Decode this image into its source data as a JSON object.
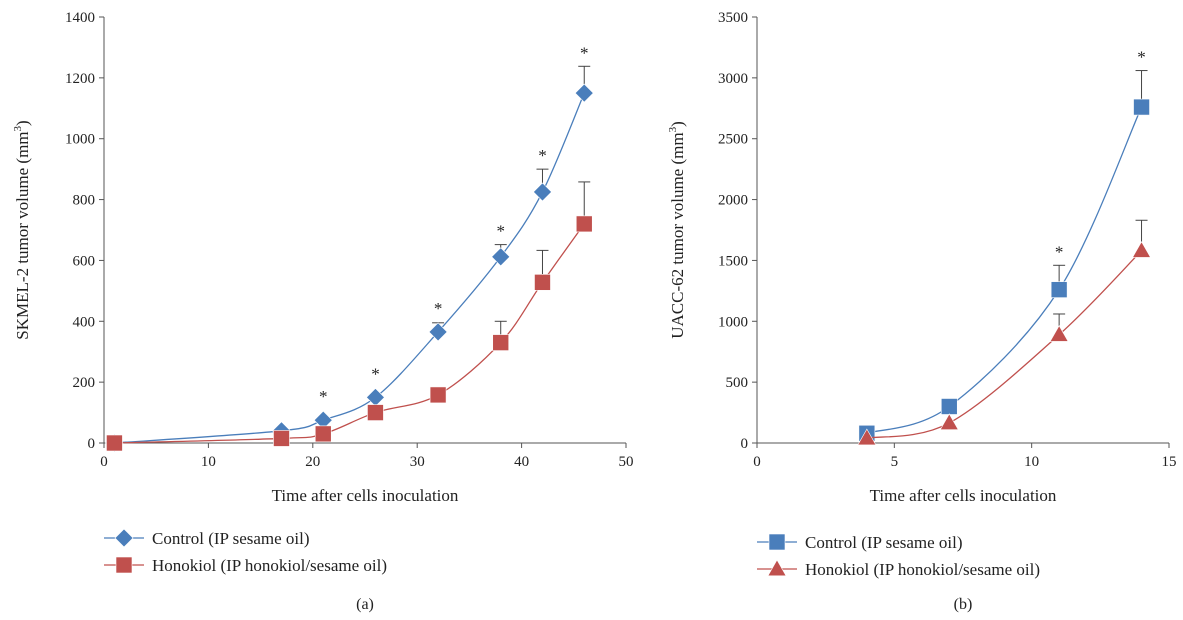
{
  "chart_data": [
    {
      "type": "line",
      "panel_label": "(a)",
      "xlabel": "Time after cells inoculation",
      "ylabel": "SKMEL-2 tumor volume (mm",
      "ylabel_sup": "3",
      "ylabel_close": ")",
      "xlim": [
        0,
        50
      ],
      "ylim": [
        0,
        1400
      ],
      "xticks": [
        0,
        10,
        20,
        30,
        40,
        50
      ],
      "yticks": [
        0,
        200,
        400,
        600,
        800,
        1000,
        1200,
        1400
      ],
      "grid": false,
      "legend_position": "bottom-left",
      "series": [
        {
          "name": "Control (IP sesame oil)",
          "color": "#4a7ebb",
          "marker": "diamond",
          "x": [
            1,
            17,
            21,
            26,
            32,
            38,
            42,
            46
          ],
          "y": [
            0,
            40,
            75,
            150,
            365,
            612,
            825,
            1150
          ],
          "error": [
            0,
            0,
            0,
            0,
            30,
            40,
            75,
            88
          ],
          "significant": [
            false,
            false,
            true,
            true,
            true,
            true,
            true,
            true
          ]
        },
        {
          "name": "Honokiol (IP honokiol/sesame oil)",
          "color": "#c0504d",
          "marker": "square",
          "x": [
            1,
            17,
            21,
            26,
            32,
            38,
            42,
            46
          ],
          "y": [
            0,
            15,
            30,
            100,
            158,
            330,
            528,
            720
          ],
          "error": [
            0,
            0,
            0,
            0,
            0,
            70,
            105,
            138
          ],
          "significant": [
            false,
            false,
            false,
            false,
            false,
            false,
            false,
            false
          ]
        }
      ]
    },
    {
      "type": "line",
      "panel_label": "(b)",
      "xlabel": "Time after cells inoculation",
      "ylabel": "UACC-62 tumor volume (mm",
      "ylabel_sup": "3",
      "ylabel_close": ")",
      "xlim": [
        0,
        15
      ],
      "ylim": [
        0,
        3500
      ],
      "xticks": [
        0,
        5,
        10,
        15
      ],
      "yticks": [
        0,
        500,
        1000,
        1500,
        2000,
        2500,
        3000,
        3500
      ],
      "grid": false,
      "legend_position": "bottom-left",
      "series": [
        {
          "name": "Control (IP sesame oil)",
          "color": "#4a7ebb",
          "marker": "square",
          "x": [
            4,
            7,
            11,
            14
          ],
          "y": [
            80,
            300,
            1260,
            2760
          ],
          "error": [
            0,
            0,
            200,
            300
          ],
          "significant": [
            false,
            false,
            true,
            true
          ]
        },
        {
          "name": "Honokiol (IP honokiol/sesame oil)",
          "color": "#c0504d",
          "marker": "triangle",
          "x": [
            4,
            7,
            11,
            14
          ],
          "y": [
            40,
            165,
            890,
            1580
          ],
          "error": [
            0,
            0,
            170,
            250
          ],
          "significant": [
            false,
            false,
            false,
            false
          ]
        }
      ]
    }
  ]
}
